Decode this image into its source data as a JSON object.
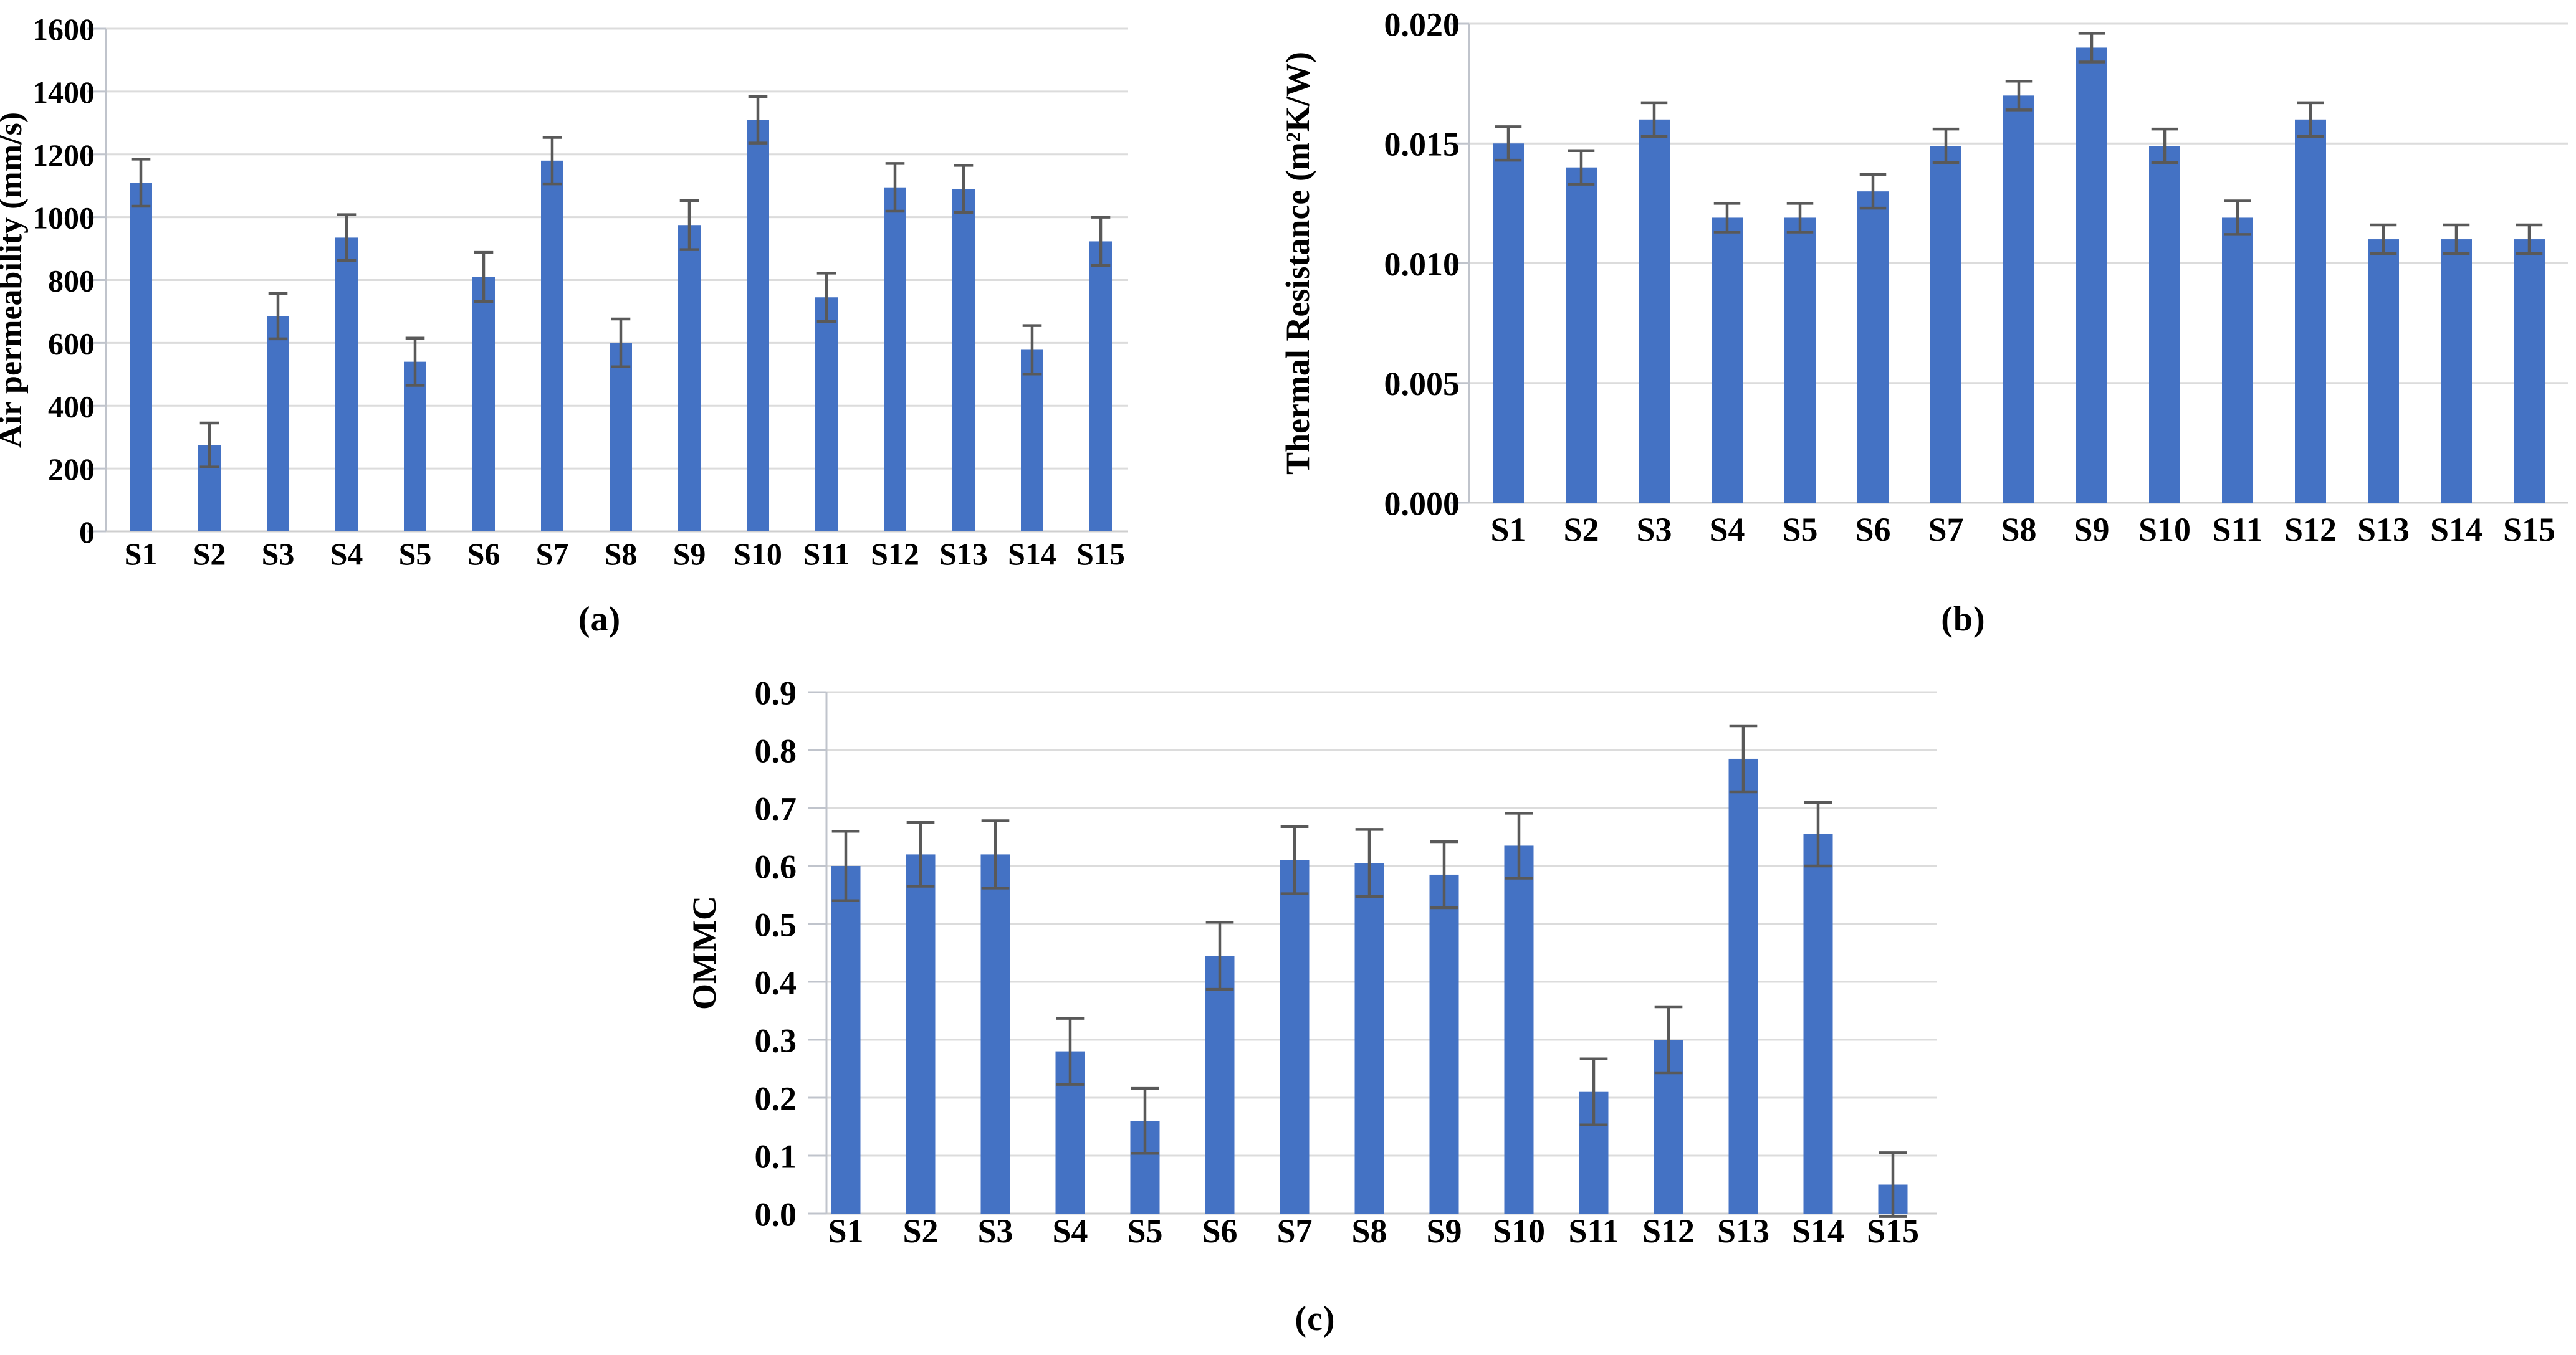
{
  "figure": {
    "captions": {
      "a": "(a)",
      "b": "(b)",
      "c": "(c)"
    }
  },
  "colors": {
    "bar": "#4472C4",
    "error_bar": "#595959",
    "gridline": "#DCDCDC",
    "baseline": "#CFCFCF",
    "axis_line": "#C0C4CC",
    "text": "#000000"
  },
  "chart_data": [
    {
      "id": "air-permeability",
      "type": "bar",
      "title": "",
      "caption": "(a)",
      "xlabel": "",
      "ylabel": "Air permeability (mm/s)",
      "categories": [
        "S1",
        "S2",
        "S3",
        "S4",
        "S5",
        "S6",
        "S7",
        "S8",
        "S9",
        "S10",
        "S11",
        "S12",
        "S13",
        "S14",
        "S15"
      ],
      "values": [
        1110,
        275,
        685,
        935,
        540,
        810,
        1180,
        600,
        975,
        1310,
        745,
        1095,
        1090,
        578,
        923
      ],
      "errors": [
        75,
        70,
        72,
        73,
        75,
        78,
        74,
        76,
        78,
        74,
        77,
        76,
        75,
        77,
        77
      ],
      "ylim": [
        0,
        1600
      ],
      "ytick_step": 200,
      "ytick_labels": [
        "1600",
        "1400",
        "1200",
        "1000",
        "800",
        "600",
        "400",
        "200",
        "0"
      ],
      "grid": true,
      "legend": false,
      "error_bars": true
    },
    {
      "id": "thermal-resistance",
      "type": "bar",
      "title": "",
      "caption": "(b)",
      "xlabel": "",
      "ylabel": "Thermal Resistance (m²K/W)",
      "categories": [
        "S1",
        "S2",
        "S3",
        "S4",
        "S5",
        "S6",
        "S7",
        "S8",
        "S9",
        "S10",
        "S11",
        "S12",
        "S13",
        "S14",
        "S15"
      ],
      "values": [
        0.015,
        0.014,
        0.016,
        0.0119,
        0.0119,
        0.013,
        0.0149,
        0.017,
        0.019,
        0.0149,
        0.0119,
        0.016,
        0.011,
        0.011,
        0.011
      ],
      "errors": [
        0.0007,
        0.0007,
        0.0007,
        0.0006,
        0.0006,
        0.0007,
        0.0007,
        0.0006,
        0.0006,
        0.0007,
        0.0007,
        0.0007,
        0.0006,
        0.0006,
        0.0006
      ],
      "ylim": [
        0,
        0.02
      ],
      "ytick_step": 0.005,
      "ytick_labels": [
        "0.020",
        "0.015",
        "0.010",
        "0.005",
        "0.000"
      ],
      "grid": true,
      "legend": false,
      "error_bars": true
    },
    {
      "id": "ommc",
      "type": "bar",
      "title": "",
      "caption": "(c)",
      "xlabel": "",
      "ylabel": "OMMC",
      "categories": [
        "S1",
        "S2",
        "S3",
        "S4",
        "S5",
        "S6",
        "S7",
        "S8",
        "S9",
        "S10",
        "S11",
        "S12",
        "S13",
        "S14",
        "S15"
      ],
      "values": [
        0.6,
        0.62,
        0.62,
        0.28,
        0.16,
        0.445,
        0.61,
        0.605,
        0.585,
        0.635,
        0.21,
        0.3,
        0.785,
        0.655,
        0.05
      ],
      "errors": [
        0.06,
        0.055,
        0.058,
        0.057,
        0.056,
        0.058,
        0.058,
        0.058,
        0.057,
        0.056,
        0.057,
        0.057,
        0.057,
        0.055,
        0.055
      ],
      "ylim": [
        0,
        0.9
      ],
      "ytick_step": 0.1,
      "ytick_labels": [
        "0.9",
        "0.8",
        "0.7",
        "0.6",
        "0.5",
        "0.4",
        "0.3",
        "0.2",
        "0.1",
        "0.0"
      ],
      "grid": true,
      "legend": false,
      "error_bars": true
    }
  ]
}
